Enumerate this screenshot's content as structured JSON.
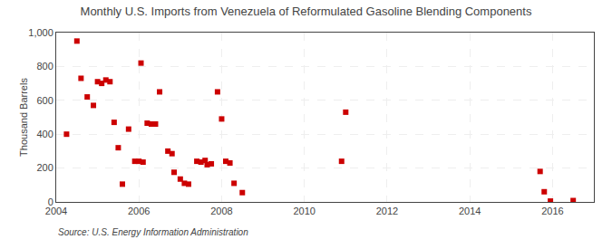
{
  "chart_data": {
    "type": "scatter",
    "title": "Monthly U.S. Imports from Venezuela of Reformulated Gasoline Blending Components",
    "ylabel": "Thousand Barrels",
    "annotations": [
      "Source: U.S. Energy Information Administration"
    ],
    "color": "#cc0000",
    "marker": "square",
    "grid": true,
    "xlim": [
      2004,
      2017
    ],
    "ylim": [
      0,
      1000
    ],
    "xticks": [
      2004,
      2006,
      2008,
      2010,
      2012,
      2014,
      2016
    ],
    "yticks": [
      0,
      200,
      400,
      600,
      800,
      {
        "value": 1000,
        "label": "1,000"
      }
    ],
    "x": [
      2004.25,
      2004.5,
      2004.6,
      2004.75,
      2004.9,
      2005.0,
      2005.1,
      2005.2,
      2005.3,
      2005.4,
      2005.5,
      2005.6,
      2005.75,
      2005.9,
      2006.0,
      2006.05,
      2006.1,
      2006.2,
      2006.3,
      2006.4,
      2006.5,
      2006.7,
      2006.8,
      2006.85,
      2007.0,
      2007.1,
      2007.2,
      2007.4,
      2007.5,
      2007.6,
      2007.65,
      2007.75,
      2007.9,
      2008.0,
      2008.1,
      2008.2,
      2008.3,
      2008.5,
      2010.9,
      2011.0,
      2015.7,
      2015.8,
      2015.95,
      2016.5
    ],
    "values": [
      400,
      950,
      730,
      620,
      570,
      710,
      700,
      720,
      710,
      470,
      320,
      105,
      430,
      240,
      240,
      820,
      235,
      465,
      460,
      460,
      650,
      300,
      285,
      175,
      135,
      110,
      105,
      240,
      235,
      245,
      220,
      225,
      650,
      490,
      240,
      230,
      110,
      55,
      240,
      530,
      180,
      60,
      5,
      8
    ]
  }
}
